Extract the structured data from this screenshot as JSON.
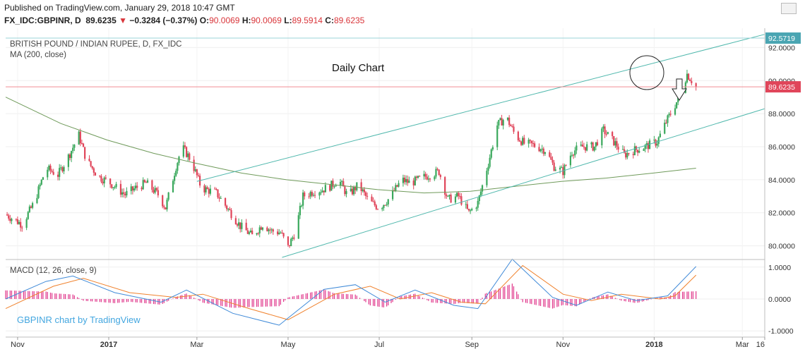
{
  "header": {
    "published": "Published on TradingView.com, January 29, 2018 10:47 GMT",
    "symbol": "FX_IDC:GBPINR, D",
    "last": "89.6235",
    "down_arrow": "▼",
    "change": "−0.3284 (−0.37%)",
    "o_label": "O:",
    "o_val": "90.0069",
    "h_label": "H:",
    "h_val": "90.0069",
    "l_label": "L:",
    "l_val": "89.5914",
    "c_label": "C:",
    "c_val": "89.6235"
  },
  "legend": {
    "pair": "BRITISH POUND / INDIAN RUPEE, D, FX_IDC",
    "ma": "MA (200, close)",
    "macd": "MACD (12, 26, close, 9)"
  },
  "annotations": {
    "title": "Daily Chart",
    "attribution": "GBPINR chart by TradingView"
  },
  "price_axis": {
    "ticks": [
      "92.0000",
      "90.0000",
      "88.0000",
      "86.0000",
      "84.0000",
      "82.0000",
      "80.0000"
    ],
    "top_tag": "92.5719",
    "last_tag": "89.6235"
  },
  "macd_axis": {
    "ticks": [
      "1.0000",
      "0.0000",
      "-1.0000"
    ]
  },
  "time_axis": {
    "labels": [
      "Nov",
      "2017",
      "Mar",
      "May",
      "Jul",
      "Sep",
      "Nov",
      "2018",
      "Mar",
      "16"
    ]
  },
  "colors": {
    "up": "#3aa85c",
    "down": "#e0455a",
    "ma": "#6f9a5a",
    "channel": "#50b8ad",
    "macd": "#3f8ad8",
    "signal": "#f0822d",
    "hist": "#e0358a",
    "last_line": "#f08e94",
    "top_tag": "#4aa5b2"
  },
  "chart_data": {
    "type": "candlestick",
    "price_ylim": [
      79.3,
      93.0
    ],
    "macd_ylim": [
      -1.15,
      1.15
    ],
    "x_range": [
      "2016-10-24",
      "2018-03-16"
    ],
    "close_path": [
      [
        "2016-10-24",
        81.9
      ],
      [
        "2016-11-04",
        81.3
      ],
      [
        "2016-11-12",
        82.6
      ],
      [
        "2016-11-20",
        84.7
      ],
      [
        "2016-11-28",
        84.3
      ],
      [
        "2016-12-05",
        85.4
      ],
      [
        "2016-12-12",
        86.7
      ],
      [
        "2016-12-17",
        85.2
      ],
      [
        "2016-12-25",
        84.2
      ],
      [
        "2017-01-02",
        83.8
      ],
      [
        "2017-01-12",
        83.1
      ],
      [
        "2017-01-19",
        83.5
      ],
      [
        "2017-01-26",
        83.8
      ],
      [
        "2017-02-03",
        83.1
      ],
      [
        "2017-02-08",
        82.3
      ],
      [
        "2017-02-15",
        84.8
      ],
      [
        "2017-02-19",
        86.0
      ],
      [
        "2017-02-25",
        85.2
      ],
      [
        "2017-03-04",
        83.5
      ],
      [
        "2017-03-14",
        83.2
      ],
      [
        "2017-03-22",
        82.2
      ],
      [
        "2017-03-30",
        81.2
      ],
      [
        "2017-04-07",
        80.6
      ],
      [
        "2017-04-14",
        81.3
      ],
      [
        "2017-04-20",
        80.9
      ],
      [
        "2017-04-26",
        80.8
      ],
      [
        "2017-05-01",
        79.9
      ],
      [
        "2017-05-06",
        80.9
      ],
      [
        "2017-05-11",
        83.0
      ],
      [
        "2017-05-18",
        83.3
      ],
      [
        "2017-05-24",
        83.4
      ],
      [
        "2017-05-29",
        83.6
      ],
      [
        "2017-06-04",
        84.0
      ],
      [
        "2017-06-10",
        83.0
      ],
      [
        "2017-06-17",
        83.7
      ],
      [
        "2017-06-24",
        82.7
      ],
      [
        "2017-07-01",
        82.3
      ],
      [
        "2017-07-08",
        82.9
      ],
      [
        "2017-07-16",
        84.0
      ],
      [
        "2017-07-22",
        83.8
      ],
      [
        "2017-08-01",
        84.2
      ],
      [
        "2017-08-10",
        84.5
      ],
      [
        "2017-08-16",
        82.8
      ],
      [
        "2017-08-23",
        83.0
      ],
      [
        "2017-08-30",
        82.0
      ],
      [
        "2017-09-05",
        82.6
      ],
      [
        "2017-09-12",
        85.0
      ],
      [
        "2017-09-18",
        87.3
      ],
      [
        "2017-09-24",
        87.8
      ],
      [
        "2017-09-30",
        86.7
      ],
      [
        "2017-10-06",
        86.2
      ],
      [
        "2017-10-12",
        86.1
      ],
      [
        "2017-10-20",
        85.8
      ],
      [
        "2017-10-26",
        84.8
      ],
      [
        "2017-11-01",
        84.5
      ],
      [
        "2017-11-07",
        85.7
      ],
      [
        "2017-11-14",
        86.0
      ],
      [
        "2017-11-22",
        86.0
      ],
      [
        "2017-11-28",
        87.0
      ],
      [
        "2017-12-05",
        86.3
      ],
      [
        "2017-12-12",
        85.5
      ],
      [
        "2017-12-19",
        85.8
      ],
      [
        "2017-12-26",
        86.0
      ],
      [
        "2018-01-03",
        86.3
      ],
      [
        "2018-01-09",
        87.5
      ],
      [
        "2018-01-16",
        88.7
      ],
      [
        "2018-01-23",
        90.4
      ],
      [
        "2018-01-29",
        89.6235
      ]
    ],
    "ma200_path": [
      [
        "2016-10-24",
        89.0
      ],
      [
        "2016-11-30",
        87.4
      ],
      [
        "2016-12-31",
        86.4
      ],
      [
        "2017-01-31",
        85.6
      ],
      [
        "2017-02-28",
        85.0
      ],
      [
        "2017-03-31",
        84.4
      ],
      [
        "2017-04-30",
        84.0
      ],
      [
        "2017-05-31",
        83.7
      ],
      [
        "2017-06-30",
        83.4
      ],
      [
        "2017-07-31",
        83.2
      ],
      [
        "2017-08-31",
        83.3
      ],
      [
        "2017-09-30",
        83.6
      ],
      [
        "2017-10-31",
        83.9
      ],
      [
        "2017-11-30",
        84.1
      ],
      [
        "2017-12-31",
        84.4
      ],
      [
        "2018-01-29",
        84.7
      ]
    ],
    "channel_upper": [
      [
        "2017-03-01",
        83.9
      ],
      [
        "2018-03-16",
        92.8
      ]
    ],
    "channel_lower": [
      [
        "2017-04-27",
        79.3
      ],
      [
        "2018-03-16",
        88.3
      ]
    ],
    "macd_path": [
      [
        "2016-10-24",
        0.0
      ],
      [
        "2016-11-20",
        0.55
      ],
      [
        "2016-12-08",
        0.72
      ],
      [
        "2017-01-05",
        0.2
      ],
      [
        "2017-02-05",
        -0.1
      ],
      [
        "2017-02-22",
        0.28
      ],
      [
        "2017-03-25",
        -0.45
      ],
      [
        "2017-04-25",
        -0.82
      ],
      [
        "2017-05-25",
        0.3
      ],
      [
        "2017-06-15",
        0.45
      ],
      [
        "2017-07-05",
        -0.1
      ],
      [
        "2017-07-25",
        0.28
      ],
      [
        "2017-08-20",
        -0.2
      ],
      [
        "2017-09-05",
        -0.3
      ],
      [
        "2017-09-28",
        1.25
      ],
      [
        "2017-10-25",
        0.05
      ],
      [
        "2017-11-10",
        -0.2
      ],
      [
        "2017-12-01",
        0.22
      ],
      [
        "2017-12-20",
        -0.05
      ],
      [
        "2018-01-10",
        0.1
      ],
      [
        "2018-01-29",
        1.02
      ]
    ],
    "signal_path": [
      [
        "2016-10-24",
        -0.3
      ],
      [
        "2016-11-25",
        0.4
      ],
      [
        "2016-12-15",
        0.65
      ],
      [
        "2017-01-15",
        0.2
      ],
      [
        "2017-02-15",
        0.05
      ],
      [
        "2017-03-05",
        0.15
      ],
      [
        "2017-04-05",
        -0.3
      ],
      [
        "2017-05-01",
        -0.65
      ],
      [
        "2017-06-01",
        0.15
      ],
      [
        "2017-06-25",
        0.4
      ],
      [
        "2017-07-15",
        0.0
      ],
      [
        "2017-08-05",
        0.2
      ],
      [
        "2017-08-25",
        -0.1
      ],
      [
        "2017-09-10",
        -0.15
      ],
      [
        "2017-10-05",
        1.05
      ],
      [
        "2017-11-01",
        0.15
      ],
      [
        "2017-11-20",
        -0.05
      ],
      [
        "2017-12-10",
        0.15
      ],
      [
        "2018-01-05",
        0.0
      ],
      [
        "2018-01-15",
        0.1
      ],
      [
        "2018-01-29",
        0.75
      ]
    ]
  }
}
